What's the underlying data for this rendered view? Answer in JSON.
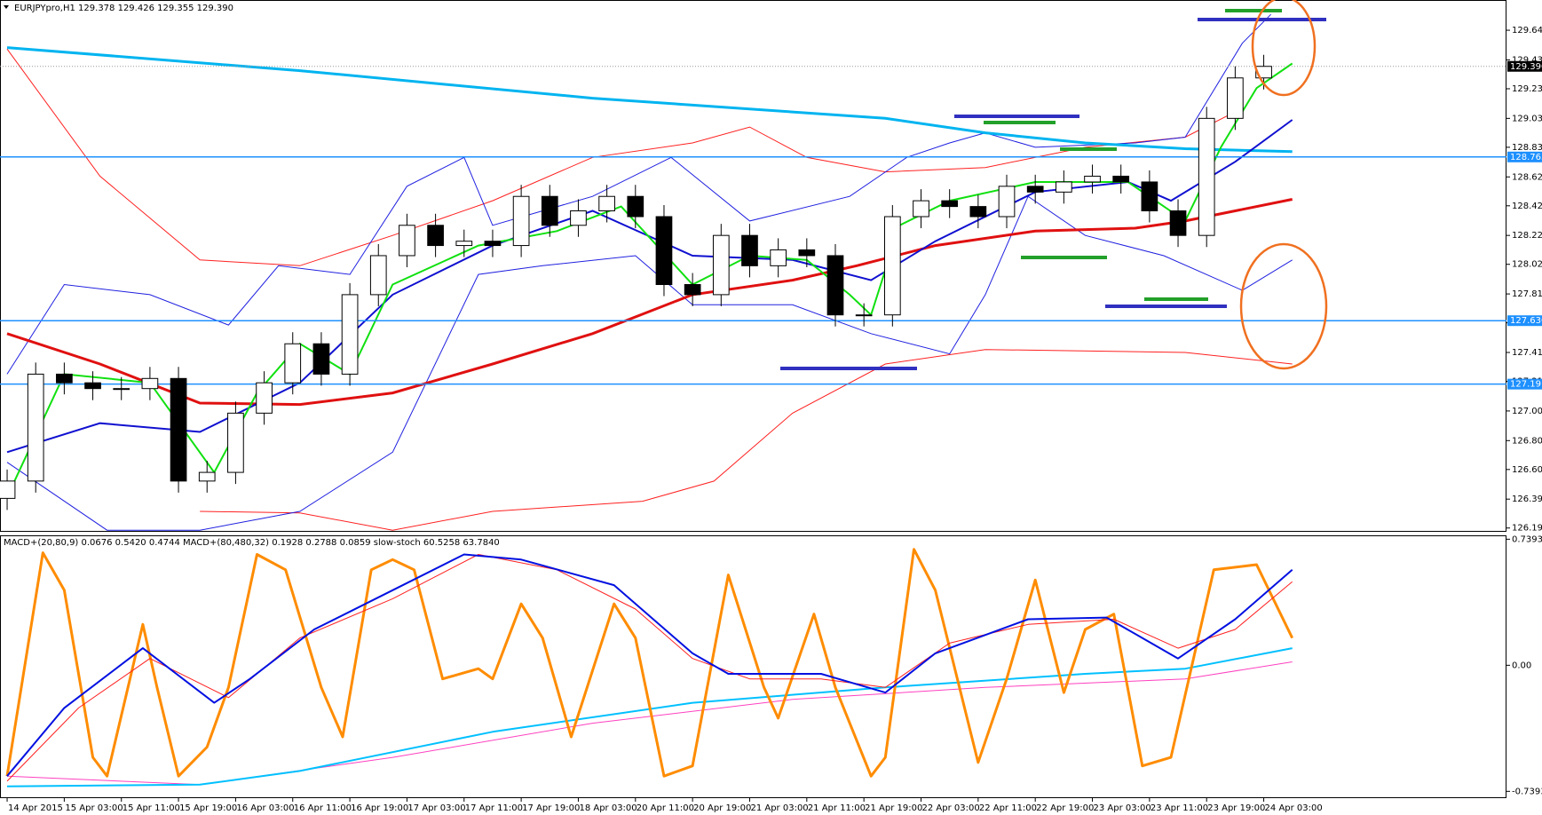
{
  "chart_data": [
    {
      "type": "candlestick",
      "title": "EURJPYpro,H1 129.378 129.426 129.355 129.390",
      "xlim": [
        -1,
        210
      ],
      "ylim": [
        126.175,
        129.837
      ],
      "yticks": [
        {
          "value": 129.64,
          "label": "129.640"
        },
        129.435,
        129.235,
        {
          "value": 129.03,
          "label": "129.030"
        },
        {
          "value": 128.83,
          "label": "128.830"
        },
        128.625,
        128.425,
        {
          "value": 128.22,
          "label": "128.220"
        },
        {
          "value": 128.02,
          "label": "128.020"
        },
        127.815,
        127.615,
        {
          "value": 127.41,
          "label": "127.410"
        },
        {
          "value": 127.21,
          "label": "127.210"
        },
        127.005,
        {
          "value": 126.8,
          "label": "126.800"
        },
        {
          "value": 126.6,
          "label": "126.600"
        },
        126.395,
        126.195
      ],
      "up_color": "#ffffff",
      "down_color": "#000000",
      "x": [
        0,
        4,
        8,
        12,
        16,
        20,
        24,
        28,
        32,
        36,
        40,
        44,
        48,
        52,
        56,
        60,
        64,
        68,
        72,
        76,
        80,
        84,
        88,
        92,
        96,
        100,
        104,
        108,
        112,
        116,
        120,
        124,
        128,
        132,
        136,
        140,
        144,
        148,
        152,
        156,
        160,
        164,
        168,
        172,
        176
      ],
      "open": [
        126.4,
        126.52,
        127.26,
        127.2,
        127.16,
        127.16,
        127.23,
        126.52,
        126.58,
        126.99,
        127.2,
        127.47,
        127.26,
        127.81,
        128.08,
        128.29,
        128.15,
        128.18,
        128.15,
        128.49,
        128.29,
        128.39,
        128.49,
        128.35,
        127.88,
        127.81,
        128.22,
        128.01,
        128.12,
        128.08,
        127.67,
        127.67,
        128.35,
        128.46,
        128.42,
        128.35,
        128.56,
        128.52,
        128.59,
        128.63,
        128.59,
        128.39,
        128.22,
        129.03,
        129.31
      ],
      "high": [
        126.6,
        127.34,
        127.34,
        127.28,
        127.24,
        127.31,
        127.31,
        126.66,
        127.07,
        127.28,
        127.55,
        127.55,
        127.89,
        128.16,
        128.37,
        128.37,
        128.26,
        128.26,
        128.57,
        128.57,
        128.47,
        128.57,
        128.57,
        128.43,
        127.96,
        128.3,
        128.3,
        128.2,
        128.2,
        128.16,
        127.75,
        128.43,
        128.54,
        128.54,
        128.5,
        128.64,
        128.64,
        128.67,
        128.71,
        128.71,
        128.67,
        128.47,
        129.11,
        129.39,
        129.47
      ],
      "low": [
        126.32,
        126.44,
        127.12,
        127.08,
        127.08,
        127.08,
        126.44,
        126.44,
        126.5,
        126.91,
        127.12,
        127.18,
        127.18,
        127.73,
        128.0,
        128.07,
        128.07,
        128.07,
        128.07,
        128.21,
        128.21,
        128.31,
        128.27,
        127.8,
        127.73,
        127.73,
        127.93,
        127.93,
        128.0,
        127.59,
        127.59,
        127.59,
        128.27,
        128.34,
        128.27,
        128.27,
        128.44,
        128.44,
        128.51,
        128.51,
        128.31,
        128.14,
        128.14,
        128.95,
        129.23
      ],
      "close": [
        126.52,
        127.26,
        127.2,
        127.16,
        127.16,
        127.23,
        126.52,
        126.58,
        126.99,
        127.2,
        127.47,
        127.26,
        127.81,
        128.08,
        128.29,
        128.15,
        128.18,
        128.15,
        128.49,
        128.29,
        128.39,
        128.49,
        128.35,
        127.88,
        127.81,
        128.22,
        128.01,
        128.12,
        128.08,
        127.67,
        127.67,
        128.35,
        128.46,
        128.42,
        128.35,
        128.56,
        128.52,
        128.59,
        128.63,
        128.59,
        128.39,
        128.22,
        129.03,
        129.31,
        129.39
      ],
      "overlays": [
        {
          "color": "#ff2020",
          "width": 1,
          "x": [
            0,
            13,
            27,
            41,
            54,
            68,
            82,
            96,
            104,
            112,
            123,
            137,
            151,
            165,
            173
          ],
          "values": [
            129.51,
            128.63,
            128.05,
            128.01,
            128.22,
            128.46,
            128.76,
            128.86,
            128.97,
            128.76,
            128.66,
            128.69,
            128.83,
            128.9,
            129.1
          ]
        },
        {
          "color": "#ff2020",
          "width": 1,
          "x": [
            27,
            41,
            54,
            68,
            89,
            99,
            110,
            123,
            137,
            165,
            180
          ],
          "values": [
            126.31,
            126.3,
            126.18,
            126.31,
            126.38,
            126.52,
            126.99,
            127.33,
            127.43,
            127.41,
            127.33
          ]
        },
        {
          "color": "#2020e0",
          "width": 1,
          "x": [
            0,
            8,
            20,
            31,
            38,
            48,
            56,
            64,
            68,
            82,
            93,
            104,
            118,
            126,
            132,
            137,
            144,
            158,
            165,
            173,
            177
          ],
          "values": [
            127.26,
            127.88,
            127.81,
            127.6,
            128.01,
            127.95,
            128.56,
            128.76,
            128.29,
            128.49,
            128.76,
            128.32,
            128.49,
            128.76,
            128.86,
            128.93,
            128.83,
            128.86,
            128.9,
            129.55,
            129.75
          ]
        },
        {
          "color": "#2020e0",
          "width": 1,
          "x": [
            0,
            14,
            27,
            41,
            54,
            66,
            75,
            88,
            96,
            110,
            121,
            132,
            137,
            143,
            151,
            162,
            173,
            180
          ],
          "values": [
            126.65,
            126.18,
            126.18,
            126.31,
            126.72,
            127.95,
            128.01,
            128.08,
            127.74,
            127.74,
            127.54,
            127.4,
            127.81,
            128.49,
            128.22,
            128.08,
            127.84,
            128.05
          ]
        },
        {
          "color": "#00b4f0",
          "width": 3,
          "x": [
            0,
            41,
            82,
            123,
            137,
            151,
            165,
            180
          ],
          "values": [
            129.52,
            129.36,
            129.17,
            129.03,
            128.93,
            128.86,
            128.82,
            128.8
          ]
        },
        {
          "color": "#e01010",
          "width": 3,
          "x": [
            0,
            13,
            27,
            41,
            54,
            68,
            82,
            96,
            110,
            119,
            130,
            144,
            158,
            165,
            172,
            180
          ],
          "values": [
            127.54,
            127.33,
            127.06,
            127.05,
            127.13,
            127.33,
            127.54,
            127.81,
            127.91,
            128.01,
            128.15,
            128.25,
            128.27,
            128.32,
            128.39,
            128.47
          ]
        },
        {
          "color": "#1010d0",
          "width": 2,
          "x": [
            0,
            13,
            27,
            41,
            54,
            68,
            82,
            96,
            110,
            121,
            130,
            144,
            157,
            163,
            172,
            180
          ],
          "values": [
            126.72,
            126.92,
            126.86,
            127.2,
            127.81,
            128.15,
            128.39,
            128.08,
            128.05,
            127.91,
            128.18,
            128.52,
            128.59,
            128.46,
            128.73,
            129.02
          ]
        },
        {
          "color": "#10e010",
          "width": 2,
          "x": [
            0,
            8,
            20,
            29,
            35,
            41,
            48,
            54,
            66,
            77,
            86,
            96,
            104,
            112,
            118,
            121,
            125,
            132,
            144,
            157,
            165,
            170,
            175,
            180
          ],
          "values": [
            126.41,
            127.26,
            127.2,
            126.58,
            127.13,
            127.47,
            127.26,
            127.88,
            128.15,
            128.25,
            128.42,
            127.88,
            128.08,
            128.05,
            127.81,
            127.67,
            128.29,
            128.46,
            128.59,
            128.59,
            128.32,
            128.83,
            129.24,
            129.41
          ]
        }
      ],
      "hlines": [
        {
          "value": 128.763,
          "color": "#1e90ff"
        },
        {
          "value": 127.63,
          "label": "127.630",
          "color": "#1e90ff"
        },
        {
          "value": 127.191,
          "color": "#1e90ff"
        }
      ],
      "last_price": {
        "value": 129.39,
        "label": "129.390"
      }
    },
    {
      "type": "line",
      "title": "MACD+(20,80,9) 0.0676 0.5420 0.4744  MACD+(80,480,32) 0.1928 0.2788 0.0859  slow-stoch 60.5258 63.7840",
      "xlim": [
        -1,
        210
      ],
      "ylim": [
        -0.774,
        0.762
      ],
      "yticks": [
        0.7393,
        {
          "value": 0,
          "label": "0.00"
        },
        -0.7393
      ],
      "xticks": [
        {
          "value": 0,
          "label": "14 Apr 2015"
        },
        {
          "value": 8,
          "label": "15 Apr 03:00"
        },
        {
          "value": 16,
          "label": "15 Apr 11:00"
        },
        {
          "value": 24,
          "label": "15 Apr 19:00"
        },
        {
          "value": 32,
          "label": "16 Apr 03:00"
        },
        {
          "value": 40,
          "label": "16 Apr 11:00"
        },
        {
          "value": 48,
          "label": "16 Apr 19:00"
        },
        {
          "value": 56,
          "label": "17 Apr 03:00"
        },
        {
          "value": 64,
          "label": "17 Apr 11:00"
        },
        {
          "value": 72,
          "label": "17 Apr 19:00"
        },
        {
          "value": 80,
          "label": "18 Apr 03:00"
        },
        {
          "value": 88,
          "label": "20 Apr 11:00"
        },
        {
          "value": 96,
          "label": "20 Apr 19:00"
        },
        {
          "value": 104,
          "label": "21 Apr 03:00"
        },
        {
          "value": 112,
          "label": "21 Apr 11:00"
        },
        {
          "value": 120,
          "label": "21 Apr 19:00"
        },
        {
          "value": 128,
          "label": "22 Apr 03:00"
        },
        {
          "value": 136,
          "label": "22 Apr 11:00"
        },
        {
          "value": 144,
          "label": "22 Apr 19:00"
        },
        {
          "value": 152,
          "label": "23 Apr 03:00"
        },
        {
          "value": 160,
          "label": "23 Apr 11:00"
        },
        {
          "value": 168,
          "label": "23 Apr 19:00"
        },
        {
          "value": 176,
          "label": "24 Apr 03:00"
        }
      ],
      "series": [
        {
          "color": "#ff40c0",
          "width": 1,
          "x": [
            0,
            27,
            54,
            82,
            110,
            137,
            165,
            180
          ],
          "values": [
            -0.65,
            -0.7,
            -0.54,
            -0.34,
            -0.2,
            -0.13,
            -0.08,
            0.02
          ]
        },
        {
          "color": "#00c0ff",
          "width": 2,
          "x": [
            0,
            27,
            41,
            68,
            96,
            123,
            151,
            165,
            180
          ],
          "values": [
            -0.71,
            -0.7,
            -0.62,
            -0.39,
            -0.22,
            -0.13,
            -0.05,
            -0.02,
            0.1
          ]
        },
        {
          "color": "#ff8c00",
          "width": 3,
          "x": [
            0,
            5,
            8,
            12,
            14,
            19,
            21,
            24,
            28,
            31,
            35,
            39,
            44,
            47,
            51,
            54,
            57,
            61,
            66,
            68,
            72,
            75,
            79,
            85,
            88,
            92,
            96,
            101,
            106,
            108,
            113,
            116,
            121,
            123,
            127,
            130,
            136,
            140,
            144,
            148,
            151,
            155,
            159,
            163,
            169,
            175,
            180
          ],
          "values": [
            -0.65,
            0.66,
            0.44,
            -0.54,
            -0.65,
            0.24,
            -0.13,
            -0.65,
            -0.48,
            -0.13,
            0.65,
            0.56,
            -0.13,
            -0.42,
            0.56,
            0.62,
            0.56,
            -0.08,
            -0.02,
            -0.08,
            0.36,
            0.16,
            -0.42,
            0.36,
            0.16,
            -0.65,
            -0.59,
            0.53,
            -0.13,
            -0.31,
            0.3,
            -0.13,
            -0.65,
            -0.54,
            0.68,
            0.44,
            -0.57,
            -0.08,
            0.5,
            -0.16,
            0.21,
            0.3,
            -0.59,
            -0.54,
            0.56,
            0.59,
            0.16
          ]
        },
        {
          "color": "#ff2020",
          "width": 1,
          "x": [
            0,
            10,
            20,
            31,
            41,
            54,
            66,
            77,
            88,
            96,
            104,
            114,
            123,
            132,
            143,
            155,
            164,
            172,
            180
          ],
          "values": [
            -0.68,
            -0.25,
            0.04,
            -0.19,
            0.16,
            0.39,
            0.65,
            0.56,
            0.33,
            0.04,
            -0.08,
            -0.08,
            -0.13,
            0.13,
            0.24,
            0.27,
            0.1,
            0.21,
            0.49
          ]
        },
        {
          "color": "#0010e0",
          "width": 2,
          "x": [
            0,
            8,
            19,
            29,
            34,
            43,
            54,
            64,
            72,
            85,
            96,
            101,
            114,
            123,
            130,
            143,
            154,
            159,
            164,
            172,
            180
          ],
          "values": [
            -0.65,
            -0.25,
            0.1,
            -0.22,
            -0.08,
            0.21,
            0.44,
            0.65,
            0.62,
            0.47,
            0.07,
            -0.05,
            -0.05,
            -0.16,
            0.07,
            0.27,
            0.28,
            0.16,
            0.04,
            0.27,
            0.56
          ]
        }
      ]
    }
  ]
}
